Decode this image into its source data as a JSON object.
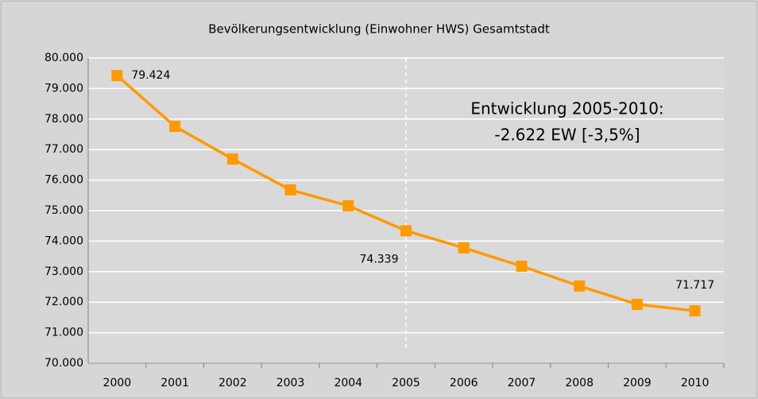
{
  "chart_data": {
    "type": "line",
    "title": "Bevölkerungsentwicklung (Einwohner HWS) Gesamtstadt",
    "categories": [
      "2000",
      "2001",
      "2002",
      "2003",
      "2004",
      "2005",
      "2006",
      "2007",
      "2008",
      "2009",
      "2010"
    ],
    "series": [
      {
        "name": "Einwohner HWS",
        "color": "#ff9900",
        "values": [
          79424,
          77760,
          76690,
          75680,
          75160,
          74339,
          73780,
          73180,
          72530,
          71930,
          71717
        ],
        "value_labels": [
          "79.424",
          null,
          null,
          null,
          null,
          "74.339",
          null,
          null,
          null,
          null,
          "71.717"
        ]
      }
    ],
    "ylim": [
      70000,
      80000
    ],
    "yticks": [
      {
        "value": 70000,
        "label": "70.000"
      },
      {
        "value": 71000,
        "label": "71.000"
      },
      {
        "value": 72000,
        "label": "72.000"
      },
      {
        "value": 73000,
        "label": "73.000"
      },
      {
        "value": 74000,
        "label": "74.000"
      },
      {
        "value": 75000,
        "label": "75.000"
      },
      {
        "value": 76000,
        "label": "76.000"
      },
      {
        "value": 77000,
        "label": "77.000"
      },
      {
        "value": 78000,
        "label": "78.000"
      },
      {
        "value": 79000,
        "label": "79.000"
      },
      {
        "value": 80000,
        "label": "80.000"
      }
    ],
    "grid": true,
    "reference_line": "2005",
    "annotation": [
      "Entwicklung 2005-2010:",
      "-2.622 EW [-3,5%]"
    ]
  }
}
